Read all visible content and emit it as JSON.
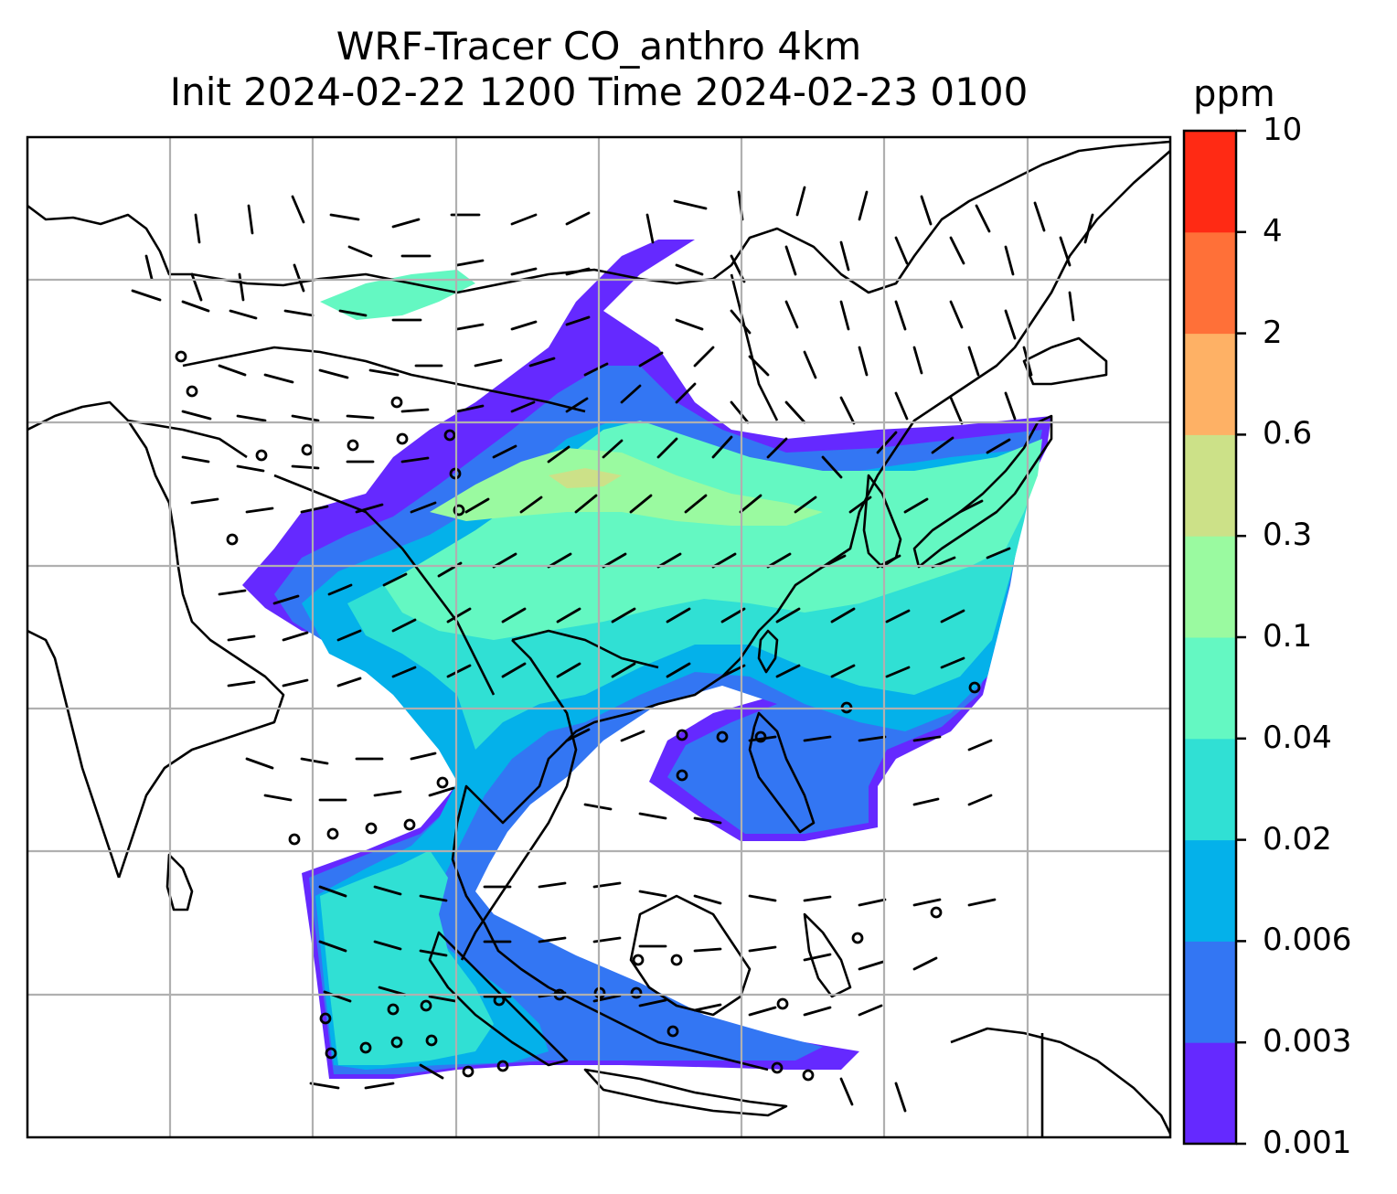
{
  "title": {
    "line1": "WRF-Tracer CO_anthro 4km",
    "line2": "Init 2024-02-22 1200 Time 2024-02-23 0100"
  },
  "colorbar": {
    "unit": "ppm",
    "levels": [
      "0.001",
      "0.003",
      "0.006",
      "0.02",
      "0.04",
      "0.1",
      "0.3",
      "0.6",
      "2",
      "4",
      "10"
    ],
    "colors": [
      "#6529ff",
      "#3376f3",
      "#04b1ea",
      "#30e0d4",
      "#64f8c2",
      "#9afaa0",
      "#cce188",
      "#feb165",
      "#ff7038",
      "#ff2a14"
    ]
  }
}
